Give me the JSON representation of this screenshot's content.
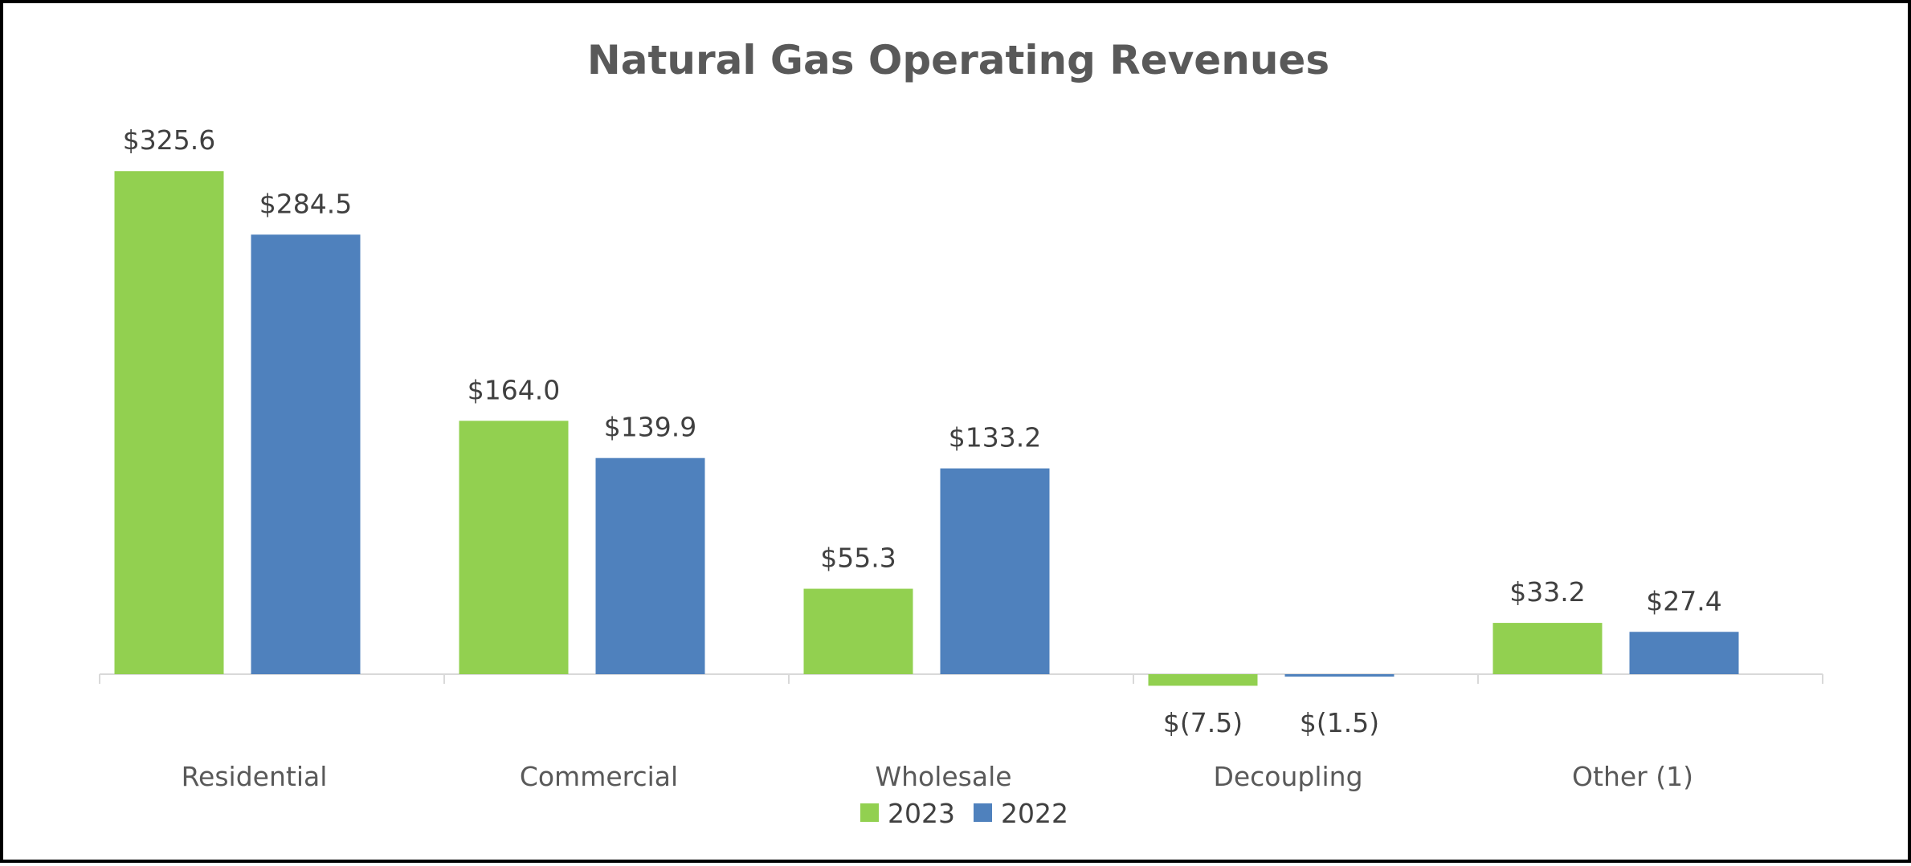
{
  "chart_data": {
    "type": "bar",
    "title": "Natural Gas Operating Revenues",
    "xlabel": "",
    "ylabel": "",
    "categories": [
      "Residential",
      "Commercial",
      "Wholesale",
      "Decoupling",
      "Other (1)"
    ],
    "series": [
      {
        "name": "2023",
        "color": "#92d050",
        "values": [
          325.6,
          164.0,
          55.3,
          -7.5,
          33.2
        ],
        "labels": [
          "$325.6",
          "$164.0",
          "$55.3",
          "$(7.5)",
          "$33.2"
        ]
      },
      {
        "name": "2022",
        "color": "#4f81bd",
        "values": [
          284.5,
          139.9,
          133.2,
          -1.5,
          27.4
        ],
        "labels": [
          "$284.5",
          "$139.9",
          "$133.2",
          "$(1.5)",
          "$27.4"
        ]
      }
    ],
    "ylim": [
      -10,
      330
    ],
    "grid": false,
    "legend": "bottom-center"
  }
}
